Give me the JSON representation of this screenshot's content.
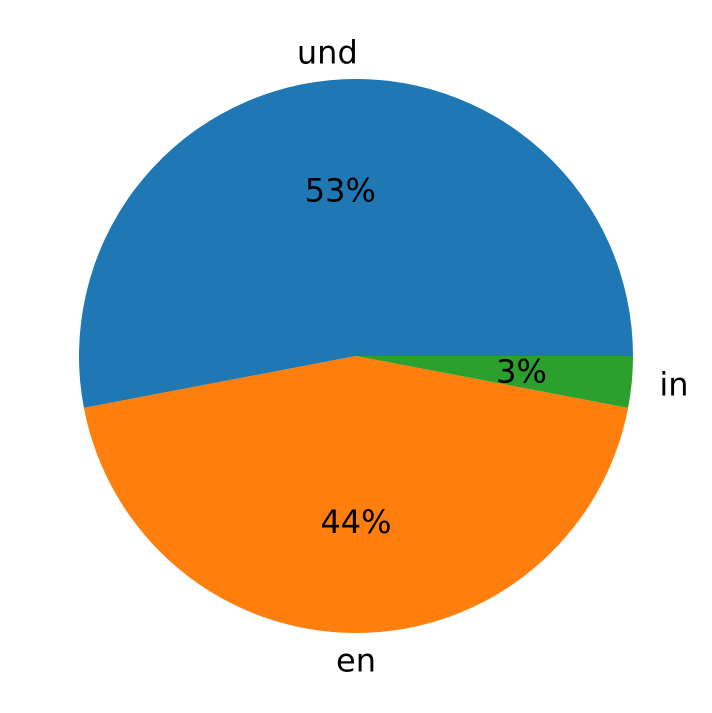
{
  "chart_data": {
    "type": "pie",
    "slices": [
      {
        "label": "und",
        "value": 53,
        "pct_label": "53%",
        "color": "#1f77b4"
      },
      {
        "label": "en",
        "value": 44,
        "pct_label": "44%",
        "color": "#ff7f0e"
      },
      {
        "label": "in",
        "value": 3,
        "pct_label": "3%",
        "color": "#2ca02c"
      }
    ],
    "start_angle_deg": 0,
    "direction": "counterclockwise"
  }
}
